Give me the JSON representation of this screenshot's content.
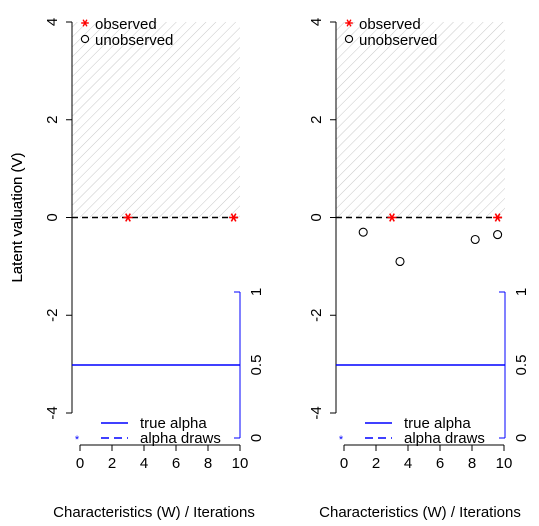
{
  "chart_data": [
    {
      "type": "scatter",
      "xlabel": "Characteristics (W) / Iterations",
      "ylabel": "Latent valuation (V)",
      "xlim": [
        0,
        10
      ],
      "ylim": [
        -4,
        4
      ],
      "x_ticks": [
        0,
        2,
        4,
        6,
        8,
        10
      ],
      "y_ticks": [
        -4,
        -2,
        0,
        2,
        4
      ],
      "right_axis": {
        "ticks": [
          0,
          0.5,
          1
        ],
        "range": [
          0,
          1
        ],
        "color": "#0000ff"
      },
      "shaded_region": {
        "y_from": 0,
        "y_to": 4,
        "pattern": "diagonal-hatch"
      },
      "threshold_line": {
        "y": 0,
        "style": "dashed"
      },
      "series": [
        {
          "name": "observed",
          "marker": "*",
          "color": "#ff0000",
          "points": [
            [
              3.0,
              0.0
            ],
            [
              9.6,
              0.0
            ]
          ]
        },
        {
          "name": "unobserved",
          "marker": "o",
          "color": "#000000",
          "points": []
        }
      ],
      "true_alpha": {
        "name": "true alpha",
        "value": 0.5,
        "color": "#0000ff",
        "style": "solid"
      },
      "alpha_draws": {
        "name": "alpha draws",
        "values": [],
        "color": "#0000ff",
        "style": "dashed"
      },
      "legend_top": [
        "observed",
        "unobserved"
      ],
      "legend_bottom": [
        "true alpha",
        "alpha draws"
      ]
    },
    {
      "type": "scatter",
      "xlabel": "Characteristics (W) / Iterations",
      "ylabel": "Latent valuation (V)",
      "xlim": [
        0,
        10
      ],
      "ylim": [
        -4,
        4
      ],
      "x_ticks": [
        0,
        2,
        4,
        6,
        8,
        10
      ],
      "y_ticks": [
        -4,
        -2,
        0,
        2,
        4
      ],
      "right_axis": {
        "ticks": [
          0,
          0.5,
          1
        ],
        "range": [
          0,
          1
        ],
        "color": "#0000ff"
      },
      "shaded_region": {
        "y_from": 0,
        "y_to": 4,
        "pattern": "diagonal-hatch"
      },
      "threshold_line": {
        "y": 0,
        "style": "dashed"
      },
      "series": [
        {
          "name": "observed",
          "marker": "*",
          "color": "#ff0000",
          "points": [
            [
              3.0,
              0.0
            ],
            [
              9.6,
              0.0
            ]
          ]
        },
        {
          "name": "unobserved",
          "marker": "o",
          "color": "#000000",
          "points": [
            [
              1.2,
              -0.3
            ],
            [
              3.5,
              -0.9
            ],
            [
              8.2,
              -0.45
            ],
            [
              9.6,
              -0.35
            ]
          ]
        }
      ],
      "true_alpha": {
        "name": "true alpha",
        "value": 0.5,
        "color": "#0000ff",
        "style": "solid"
      },
      "alpha_draws": {
        "name": "alpha draws",
        "values": [],
        "color": "#0000ff",
        "style": "dashed"
      },
      "legend_top": [
        "observed",
        "unobserved"
      ],
      "legend_bottom": [
        "true alpha",
        "alpha draws"
      ]
    }
  ]
}
